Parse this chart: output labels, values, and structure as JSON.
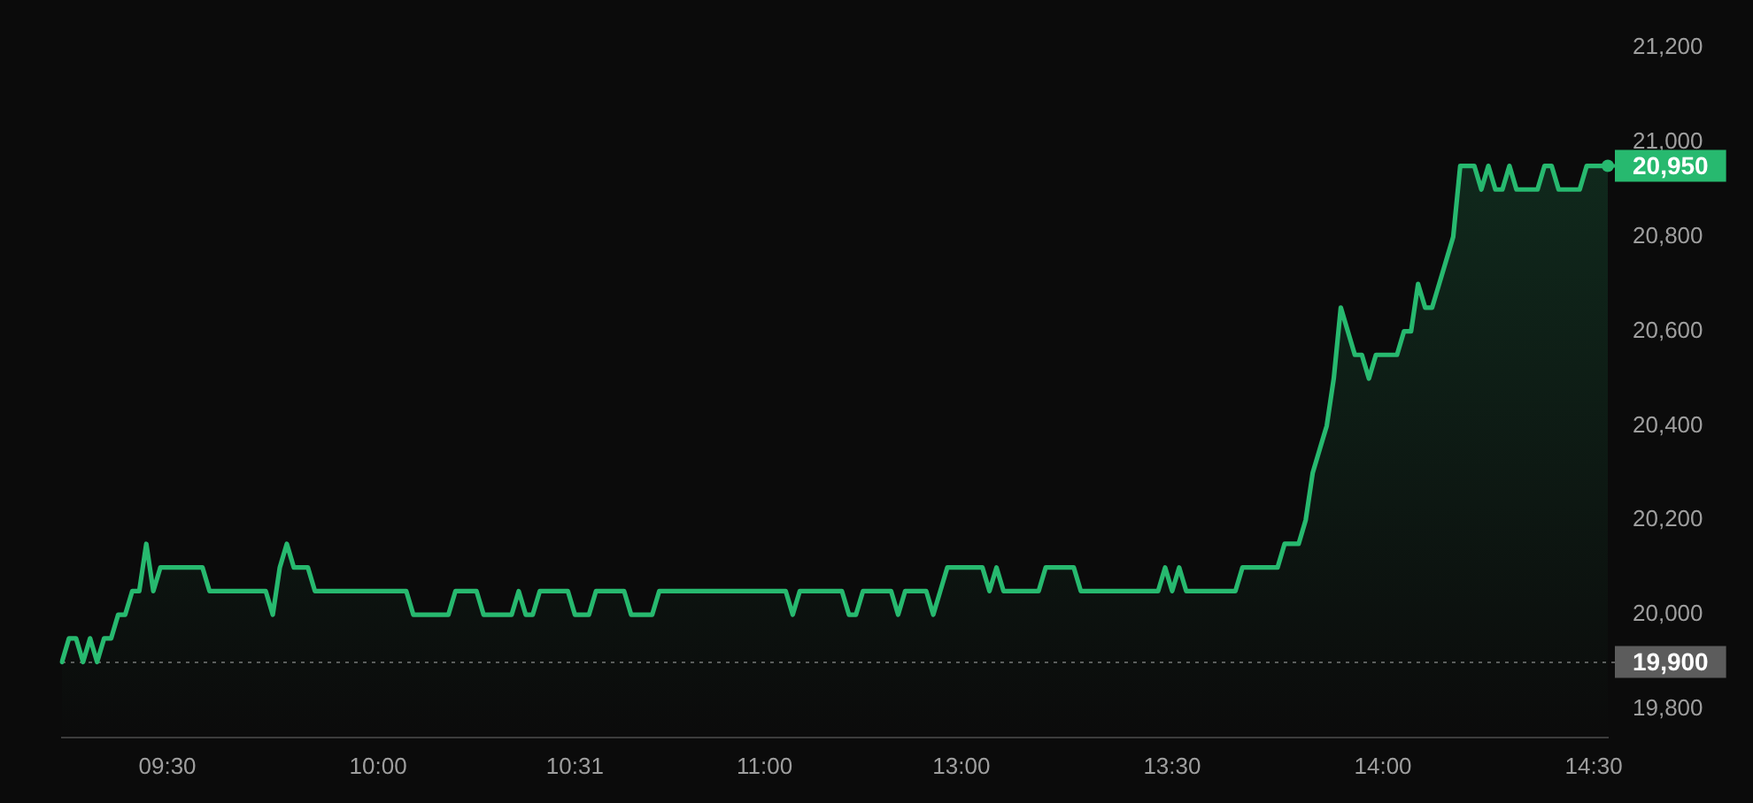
{
  "chart_data": {
    "type": "area",
    "categories": [
      null,
      null,
      null,
      null,
      null,
      null,
      null,
      null,
      null,
      null,
      null,
      null,
      null,
      null,
      null,
      "09:30",
      null,
      null,
      null,
      null,
      null,
      null,
      null,
      null,
      null,
      null,
      null,
      null,
      null,
      null,
      null,
      null,
      null,
      null,
      null,
      null,
      null,
      null,
      null,
      null,
      null,
      null,
      null,
      null,
      null,
      "10:00",
      null,
      null,
      null,
      null,
      null,
      null,
      null,
      null,
      null,
      null,
      null,
      null,
      null,
      null,
      null,
      null,
      null,
      null,
      null,
      null,
      null,
      null,
      null,
      null,
      null,
      null,
      null,
      "10:31",
      null,
      null,
      null,
      null,
      null,
      null,
      null,
      null,
      null,
      null,
      null,
      null,
      null,
      null,
      null,
      null,
      null,
      null,
      null,
      null,
      null,
      null,
      null,
      null,
      null,
      null,
      "11:00",
      null,
      null,
      null,
      null,
      null,
      null,
      null,
      null,
      null,
      null,
      null,
      null,
      null,
      null,
      null,
      null,
      null,
      null,
      null,
      null,
      null,
      null,
      null,
      null,
      null,
      null,
      null,
      "13:00",
      null,
      null,
      null,
      null,
      null,
      null,
      null,
      null,
      null,
      null,
      null,
      null,
      null,
      null,
      null,
      null,
      null,
      null,
      null,
      null,
      null,
      null,
      null,
      null,
      null,
      null,
      null,
      null,
      null,
      "13:30",
      null,
      null,
      null,
      null,
      null,
      null,
      null,
      null,
      null,
      null,
      null,
      null,
      null,
      null,
      null,
      null,
      null,
      null,
      null,
      null,
      null,
      null,
      null,
      null,
      null,
      null,
      null,
      null,
      null,
      "14:00",
      null,
      null,
      null,
      null,
      null,
      null,
      null,
      null,
      null,
      null,
      null,
      null,
      null,
      null,
      null,
      null,
      null,
      null,
      null,
      null,
      null,
      null,
      null,
      null,
      null,
      null,
      null,
      null,
      null,
      "14:30",
      null,
      null
    ],
    "values": [
      19900,
      19950,
      19950,
      19900,
      19950,
      19900,
      19950,
      19950,
      20000,
      20000,
      20050,
      20050,
      20150,
      20050,
      20100,
      20100,
      20100,
      20100,
      20100,
      20100,
      20100,
      20050,
      20050,
      20050,
      20050,
      20050,
      20050,
      20050,
      20050,
      20050,
      20000,
      20100,
      20150,
      20100,
      20100,
      20100,
      20050,
      20050,
      20050,
      20050,
      20050,
      20050,
      20050,
      20050,
      20050,
      20050,
      20050,
      20050,
      20050,
      20050,
      20000,
      20000,
      20000,
      20000,
      20000,
      20000,
      20050,
      20050,
      20050,
      20050,
      20000,
      20000,
      20000,
      20000,
      20000,
      20050,
      20000,
      20000,
      20050,
      20050,
      20050,
      20050,
      20050,
      20000,
      20000,
      20000,
      20050,
      20050,
      20050,
      20050,
      20050,
      20000,
      20000,
      20000,
      20000,
      20050,
      20050,
      20050,
      20050,
      20050,
      20050,
      20050,
      20050,
      20050,
      20050,
      20050,
      20050,
      20050,
      20050,
      20050,
      20050,
      20050,
      20050,
      20050,
      20000,
      20050,
      20050,
      20050,
      20050,
      20050,
      20050,
      20050,
      20000,
      20000,
      20050,
      20050,
      20050,
      20050,
      20050,
      20000,
      20050,
      20050,
      20050,
      20050,
      20000,
      20050,
      20100,
      20100,
      20100,
      20100,
      20100,
      20100,
      20050,
      20100,
      20050,
      20050,
      20050,
      20050,
      20050,
      20050,
      20100,
      20100,
      20100,
      20100,
      20100,
      20050,
      20050,
      20050,
      20050,
      20050,
      20050,
      20050,
      20050,
      20050,
      20050,
      20050,
      20050,
      20100,
      20050,
      20100,
      20050,
      20050,
      20050,
      20050,
      20050,
      20050,
      20050,
      20050,
      20100,
      20100,
      20100,
      20100,
      20100,
      20100,
      20150,
      20150,
      20150,
      20200,
      20300,
      20350,
      20400,
      20500,
      20650,
      20600,
      20550,
      20550,
      20500,
      20550,
      20550,
      20550,
      20550,
      20600,
      20600,
      20700,
      20650,
      20650,
      20700,
      20750,
      20800,
      20950,
      20950,
      20950,
      20900,
      20950,
      20900,
      20900,
      20950,
      20900,
      20900,
      20900,
      20900,
      20950,
      20950,
      20900,
      20900,
      20900,
      20900,
      20950,
      20950,
      20950,
      20950
    ],
    "value_labels": [
      null,
      null,
      null,
      null,
      null,
      null,
      null,
      null,
      null,
      null,
      null,
      null,
      null,
      null,
      null,
      null,
      null,
      null,
      null,
      null,
      null,
      null,
      null,
      null,
      null,
      null,
      null,
      null,
      null,
      null,
      null,
      null,
      null,
      null,
      null,
      null,
      null,
      null,
      null,
      null,
      null,
      null,
      null,
      null,
      null,
      null,
      null,
      null,
      null,
      null,
      null,
      null,
      null,
      null,
      null,
      null,
      null,
      null,
      null,
      null,
      null,
      null,
      null,
      null,
      null,
      null,
      null,
      null,
      null,
      null,
      null,
      null,
      null,
      null,
      null,
      null,
      null,
      null,
      null,
      null,
      null,
      null,
      null,
      null,
      null,
      null,
      null,
      null,
      null,
      null,
      null,
      null,
      null,
      null,
      null,
      null,
      null,
      null,
      null,
      null,
      null,
      null,
      null,
      null,
      null,
      null,
      null,
      null,
      null,
      null,
      null,
      null,
      null,
      null,
      null,
      null,
      null,
      null,
      null,
      null,
      null,
      null,
      null,
      null,
      null,
      null,
      null,
      null,
      null,
      null,
      null,
      null,
      null,
      null,
      null,
      null,
      null,
      null,
      null,
      null,
      null,
      null,
      null,
      null,
      null,
      null,
      null,
      null,
      null,
      null,
      null,
      null,
      null,
      null,
      null,
      null,
      null,
      null,
      null,
      null,
      null,
      null,
      null,
      null,
      null,
      null,
      null,
      null,
      null,
      null,
      null,
      null,
      null,
      null,
      null,
      null,
      null,
      null,
      null,
      null,
      null,
      null,
      null,
      null,
      null,
      null,
      null,
      null,
      null,
      null,
      null,
      null,
      null,
      null,
      null,
      null,
      null,
      null,
      null,
      null,
      null,
      null,
      null,
      null,
      null,
      null,
      null,
      null,
      null,
      null,
      null,
      null,
      null,
      null,
      null,
      null,
      null,
      null,
      null,
      null,
      "20,950"
    ],
    "color": "#27b96f",
    "ylim": [
      19740,
      21200
    ],
    "yticks": [
      {
        "value": 19800,
        "label": "19,800"
      },
      {
        "value": 20000,
        "label": "20,000"
      },
      {
        "value": 20200,
        "label": "20,200"
      },
      {
        "value": 20400,
        "label": "20,400"
      },
      {
        "value": 20600,
        "label": "20,600"
      },
      {
        "value": 20800,
        "label": "20,800"
      },
      {
        "value": 21000,
        "label": "21,000"
      },
      {
        "value": 21200,
        "label": "21,200"
      }
    ],
    "marker": "none",
    "ref_lines": [
      {
        "axis": "y",
        "value": 19900,
        "label": "19,900",
        "color": "#5c5c5c",
        "line_style": "dotted"
      }
    ]
  }
}
